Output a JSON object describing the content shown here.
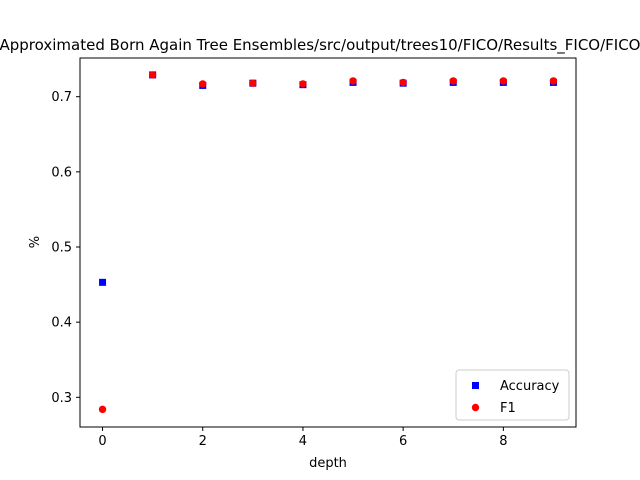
{
  "chart_data": {
    "type": "scatter",
    "title": "Approximated Born Again Tree Ensembles/src/output/trees10/FICO/Results_FICO/FICO",
    "xlabel": "depth",
    "ylabel": "%",
    "xlim": [
      -0.45,
      9.45
    ],
    "ylim": [
      0.2605,
      0.7515
    ],
    "xticks": [
      0,
      2,
      4,
      6,
      8
    ],
    "yticks": [
      0.3,
      0.4,
      0.5,
      0.6,
      0.7
    ],
    "grid": false,
    "legend_position": "lower right",
    "series": [
      {
        "name": "Accuracy",
        "marker": "square",
        "color": "#0000ff",
        "x": [
          0,
          1,
          2,
          3,
          4,
          5,
          6,
          7,
          8,
          9
        ],
        "y": [
          0.453,
          0.729,
          0.715,
          0.718,
          0.716,
          0.719,
          0.718,
          0.719,
          0.719,
          0.719
        ]
      },
      {
        "name": "F1",
        "marker": "circle",
        "color": "#ff0000",
        "x": [
          0,
          1,
          2,
          3,
          4,
          5,
          6,
          7,
          8,
          9
        ],
        "y": [
          0.284,
          0.729,
          0.717,
          0.718,
          0.717,
          0.721,
          0.719,
          0.721,
          0.721,
          0.721
        ]
      }
    ]
  }
}
